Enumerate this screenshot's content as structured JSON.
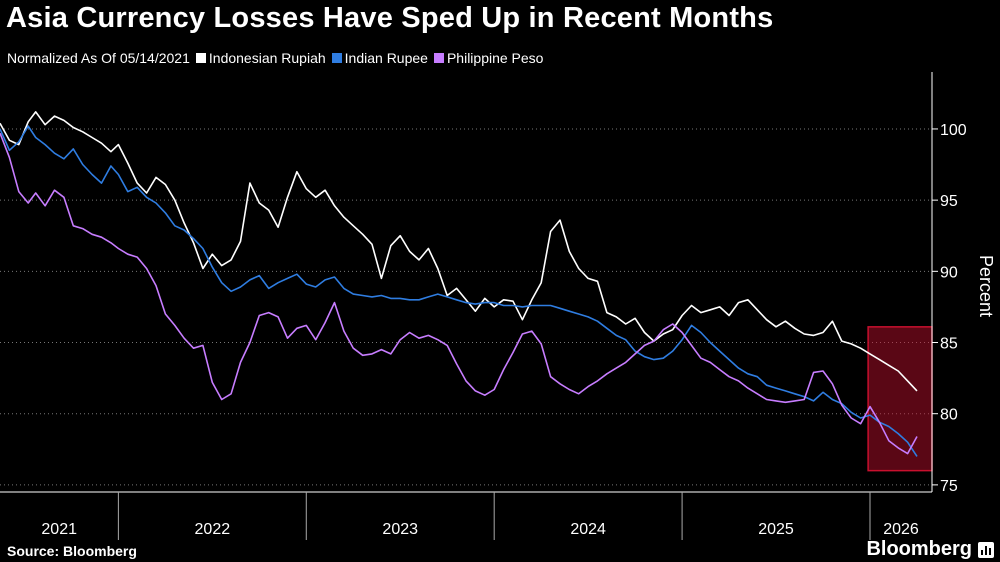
{
  "title": "Asia Currency Losses Have Sped Up in Recent Months",
  "subtitle": "Normalized As Of 05/14/2021",
  "source": "Source: Bloomberg",
  "brand": "Bloomberg",
  "brand_icon": "bar-chart-icon",
  "chart_data": {
    "type": "line",
    "title": "Asia Currency Losses Have Sped Up in Recent Months",
    "subtitle": "Normalized As Of 05/14/2021",
    "ylabel": "Percent",
    "xlabel": "",
    "ylim": [
      74.5,
      104
    ],
    "yticks": [
      75,
      80,
      85,
      90,
      95,
      100
    ],
    "xlim": [
      2021.37,
      2026.33
    ],
    "xticks": [
      "2021",
      "2022",
      "2023",
      "2024",
      "2025",
      "2026"
    ],
    "grid": "horizontal dotted",
    "legend": "top-left",
    "highlight": {
      "x": [
        2025.99,
        2026.33
      ],
      "y": [
        76,
        86.1
      ],
      "color": "#c8102e"
    },
    "series": [
      {
        "name": "Indonesian Rupiah",
        "color": "#ffffff",
        "x": [
          2021.37,
          2021.42,
          2021.47,
          2021.52,
          2021.56,
          2021.61,
          2021.66,
          2021.71,
          2021.76,
          2021.81,
          2021.86,
          2021.91,
          2021.96,
          2022.0,
          2022.05,
          2022.1,
          2022.15,
          2022.2,
          2022.25,
          2022.3,
          2022.35,
          2022.4,
          2022.45,
          2022.5,
          2022.55,
          2022.6,
          2022.65,
          2022.7,
          2022.75,
          2022.8,
          2022.85,
          2022.9,
          2022.95,
          2023.0,
          2023.05,
          2023.1,
          2023.15,
          2023.2,
          2023.25,
          2023.3,
          2023.35,
          2023.4,
          2023.45,
          2023.5,
          2023.55,
          2023.6,
          2023.65,
          2023.7,
          2023.75,
          2023.8,
          2023.85,
          2023.9,
          2023.95,
          2024.0,
          2024.05,
          2024.1,
          2024.15,
          2024.2,
          2024.25,
          2024.3,
          2024.35,
          2024.4,
          2024.45,
          2024.5,
          2024.55,
          2024.6,
          2024.65,
          2024.7,
          2024.75,
          2024.8,
          2024.85,
          2024.9,
          2024.95,
          2025.0,
          2025.05,
          2025.1,
          2025.15,
          2025.2,
          2025.25,
          2025.3,
          2025.35,
          2025.4,
          2025.45,
          2025.5,
          2025.55,
          2025.6,
          2025.65,
          2025.7,
          2025.75,
          2025.8,
          2025.85,
          2025.9,
          2025.95,
          2026.0,
          2026.05,
          2026.1,
          2026.15,
          2026.2,
          2026.25
        ],
        "values": [
          100.4,
          99.2,
          98.9,
          100.5,
          101.2,
          100.3,
          100.9,
          100.6,
          100.1,
          99.8,
          99.4,
          99.0,
          98.4,
          98.9,
          97.6,
          96.2,
          95.5,
          96.6,
          96.1,
          95.0,
          93.4,
          92.0,
          90.2,
          91.2,
          90.4,
          90.8,
          92.1,
          96.2,
          94.8,
          94.3,
          93.1,
          95.2,
          97.0,
          95.8,
          95.2,
          95.7,
          94.6,
          93.8,
          93.2,
          92.6,
          91.9,
          89.5,
          91.8,
          92.5,
          91.4,
          90.8,
          91.6,
          90.2,
          88.3,
          88.8,
          88.0,
          87.2,
          88.1,
          87.5,
          88.0,
          87.9,
          86.6,
          88.0,
          89.2,
          92.8,
          93.6,
          91.4,
          90.2,
          89.5,
          89.3,
          87.1,
          86.8,
          86.3,
          86.7,
          85.7,
          85.1,
          85.6,
          85.9,
          86.9,
          87.6,
          87.1,
          87.3,
          87.5,
          86.9,
          87.8,
          88.0,
          87.3,
          86.6,
          86.1,
          86.5,
          86.0,
          85.6,
          85.5,
          85.7,
          86.5,
          85.1,
          84.9,
          84.6,
          84.2,
          83.8,
          83.4,
          83.0,
          82.3,
          81.6
        ]
      },
      {
        "name": "Indian Rupee",
        "color": "#2f7de1",
        "x": [
          2021.37,
          2021.42,
          2021.47,
          2021.52,
          2021.56,
          2021.61,
          2021.66,
          2021.71,
          2021.76,
          2021.81,
          2021.86,
          2021.91,
          2021.96,
          2022.0,
          2022.05,
          2022.1,
          2022.15,
          2022.2,
          2022.25,
          2022.3,
          2022.35,
          2022.4,
          2022.45,
          2022.5,
          2022.55,
          2022.6,
          2022.65,
          2022.7,
          2022.75,
          2022.8,
          2022.85,
          2022.9,
          2022.95,
          2023.0,
          2023.05,
          2023.1,
          2023.15,
          2023.2,
          2023.25,
          2023.3,
          2023.35,
          2023.4,
          2023.45,
          2023.5,
          2023.55,
          2023.6,
          2023.65,
          2023.7,
          2023.75,
          2023.8,
          2023.85,
          2023.9,
          2023.95,
          2024.0,
          2024.05,
          2024.1,
          2024.15,
          2024.2,
          2024.25,
          2024.3,
          2024.35,
          2024.4,
          2024.45,
          2024.5,
          2024.55,
          2024.6,
          2024.65,
          2024.7,
          2024.75,
          2024.8,
          2024.85,
          2024.9,
          2024.95,
          2025.0,
          2025.05,
          2025.1,
          2025.15,
          2025.2,
          2025.25,
          2025.3,
          2025.35,
          2025.4,
          2025.45,
          2025.5,
          2025.55,
          2025.6,
          2025.65,
          2025.7,
          2025.75,
          2025.8,
          2025.85,
          2025.9,
          2025.95,
          2026.0,
          2026.05,
          2026.1,
          2026.15,
          2026.2,
          2026.25
        ],
        "values": [
          100.0,
          98.5,
          99.1,
          100.2,
          99.4,
          98.9,
          98.3,
          97.9,
          98.6,
          97.5,
          96.8,
          96.2,
          97.4,
          96.8,
          95.6,
          95.9,
          95.2,
          94.8,
          94.1,
          93.2,
          92.9,
          92.3,
          91.6,
          90.3,
          89.2,
          88.6,
          88.9,
          89.4,
          89.7,
          88.8,
          89.2,
          89.5,
          89.8,
          89.1,
          88.9,
          89.4,
          89.6,
          88.8,
          88.4,
          88.3,
          88.2,
          88.3,
          88.1,
          88.1,
          88.0,
          88.0,
          88.2,
          88.4,
          88.2,
          88.0,
          87.8,
          87.7,
          87.8,
          87.8,
          87.6,
          87.6,
          87.5,
          87.6,
          87.6,
          87.6,
          87.4,
          87.2,
          87.0,
          86.8,
          86.5,
          86.0,
          85.5,
          85.2,
          84.4,
          84.0,
          83.8,
          83.9,
          84.4,
          85.2,
          86.2,
          85.7,
          85.0,
          84.4,
          83.8,
          83.2,
          82.8,
          82.6,
          82.0,
          81.8,
          81.6,
          81.4,
          81.2,
          80.9,
          81.5,
          81.0,
          80.7,
          80.1,
          79.7,
          79.9,
          79.4,
          79.1,
          78.6,
          78.0,
          77.0
        ]
      },
      {
        "name": "Philippine Peso",
        "color": "#c77dff",
        "x": [
          2021.37,
          2021.42,
          2021.47,
          2021.52,
          2021.56,
          2021.61,
          2021.66,
          2021.71,
          2021.76,
          2021.81,
          2021.86,
          2021.91,
          2021.96,
          2022.0,
          2022.05,
          2022.1,
          2022.15,
          2022.2,
          2022.25,
          2022.3,
          2022.35,
          2022.4,
          2022.45,
          2022.5,
          2022.55,
          2022.6,
          2022.65,
          2022.7,
          2022.75,
          2022.8,
          2022.85,
          2022.9,
          2022.95,
          2023.0,
          2023.05,
          2023.1,
          2023.15,
          2023.2,
          2023.25,
          2023.3,
          2023.35,
          2023.4,
          2023.45,
          2023.5,
          2023.55,
          2023.6,
          2023.65,
          2023.7,
          2023.75,
          2023.8,
          2023.85,
          2023.9,
          2023.95,
          2024.0,
          2024.05,
          2024.1,
          2024.15,
          2024.2,
          2024.25,
          2024.3,
          2024.35,
          2024.4,
          2024.45,
          2024.5,
          2024.55,
          2024.6,
          2024.65,
          2024.7,
          2024.75,
          2024.8,
          2024.85,
          2024.9,
          2024.95,
          2025.0,
          2025.05,
          2025.1,
          2025.15,
          2025.2,
          2025.25,
          2025.3,
          2025.35,
          2025.4,
          2025.45,
          2025.5,
          2025.55,
          2025.6,
          2025.65,
          2025.7,
          2025.75,
          2025.8,
          2025.85,
          2025.9,
          2025.95,
          2026.0,
          2026.05,
          2026.1,
          2026.15,
          2026.2,
          2026.25
        ],
        "values": [
          99.7,
          98.0,
          95.6,
          94.8,
          95.5,
          94.6,
          95.7,
          95.2,
          93.2,
          93.0,
          92.6,
          92.4,
          92.0,
          91.6,
          91.2,
          91.0,
          90.2,
          89.0,
          87.0,
          86.2,
          85.3,
          84.6,
          84.8,
          82.2,
          81.0,
          81.4,
          83.6,
          85.0,
          86.9,
          87.1,
          86.8,
          85.3,
          86.0,
          86.2,
          85.2,
          86.4,
          87.8,
          85.8,
          84.6,
          84.1,
          84.2,
          84.5,
          84.2,
          85.2,
          85.7,
          85.3,
          85.5,
          85.2,
          84.8,
          83.5,
          82.3,
          81.6,
          81.3,
          81.7,
          83.1,
          84.3,
          85.6,
          85.8,
          84.9,
          82.6,
          82.1,
          81.7,
          81.4,
          81.9,
          82.3,
          82.8,
          83.2,
          83.6,
          84.2,
          84.8,
          85.1,
          85.9,
          86.3,
          85.7,
          84.8,
          83.9,
          83.6,
          83.1,
          82.6,
          82.3,
          81.8,
          81.4,
          81.0,
          80.9,
          80.8,
          80.9,
          81.0,
          82.9,
          83.0,
          82.1,
          80.6,
          79.7,
          79.3,
          80.5,
          79.4,
          78.1,
          77.6,
          77.2,
          78.4
        ]
      }
    ]
  }
}
